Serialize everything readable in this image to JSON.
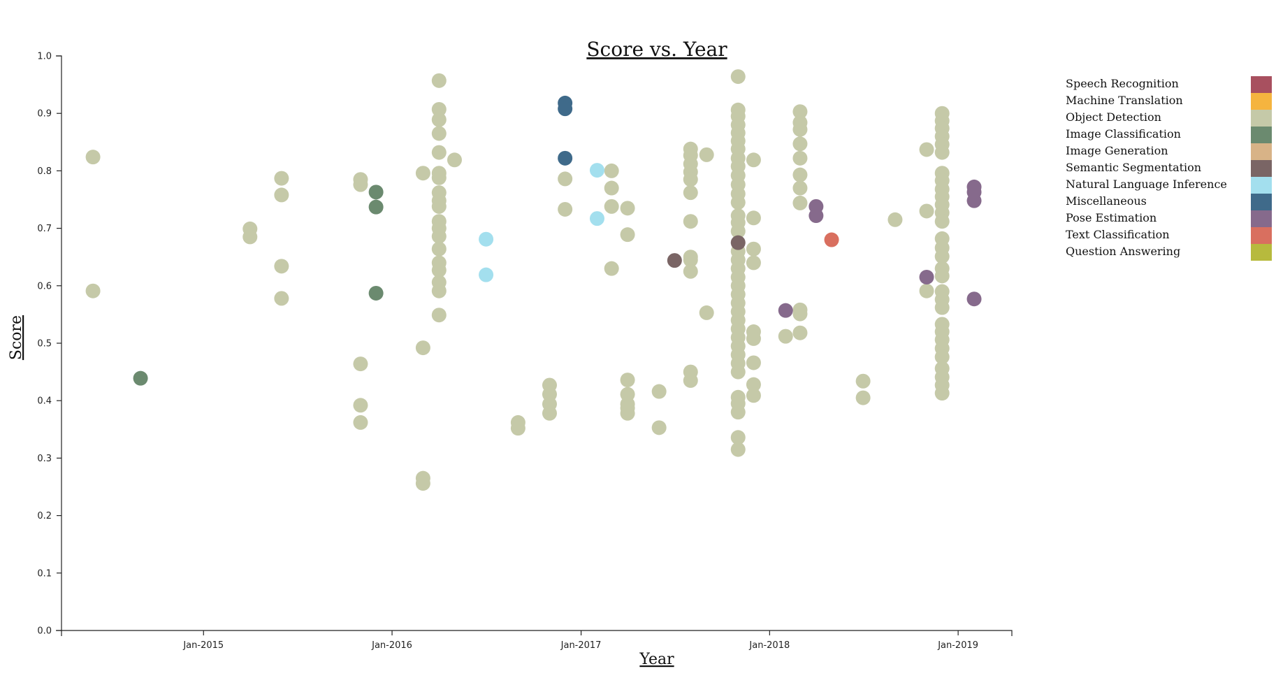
{
  "chart_data": {
    "type": "scatter",
    "title": "Score vs. Year",
    "xlabel": "Year",
    "ylabel": "Score",
    "ylim": [
      0,
      1
    ],
    "xlim": [
      "2014-04-01",
      "2019-04-15"
    ],
    "x_ticks": [
      {
        "date": "2015-01-01",
        "label": "Jan-2015"
      },
      {
        "date": "2016-01-01",
        "label": "Jan-2016"
      },
      {
        "date": "2017-01-01",
        "label": "Jan-2017"
      },
      {
        "date": "2018-01-01",
        "label": "Jan-2018"
      },
      {
        "date": "2019-01-01",
        "label": "Jan-2019"
      }
    ],
    "y_ticks": [
      "0.0",
      "0.1",
      "0.2",
      "0.3",
      "0.4",
      "0.5",
      "0.6",
      "0.7",
      "0.8",
      "0.9",
      "1.0"
    ],
    "grid": false,
    "legend_position": "right",
    "series": [
      {
        "name": "Speech Recognition",
        "color": "#a8505f",
        "points": []
      },
      {
        "name": "Machine Translation",
        "color": "#f5b43f",
        "points": []
      },
      {
        "name": "Object Detection",
        "color": "#c5c9a8",
        "points": [
          {
            "x": "2014-06-01",
            "y": 0.824
          },
          {
            "x": "2014-06-01",
            "y": 0.591
          },
          {
            "x": "2015-04-01",
            "y": 0.699
          },
          {
            "x": "2015-04-01",
            "y": 0.685
          },
          {
            "x": "2015-06-01",
            "y": 0.787
          },
          {
            "x": "2015-06-01",
            "y": 0.758
          },
          {
            "x": "2015-06-01",
            "y": 0.634
          },
          {
            "x": "2015-06-01",
            "y": 0.578
          },
          {
            "x": "2015-11-01",
            "y": 0.785
          },
          {
            "x": "2015-11-01",
            "y": 0.776
          },
          {
            "x": "2015-11-01",
            "y": 0.464
          },
          {
            "x": "2015-11-01",
            "y": 0.392
          },
          {
            "x": "2015-11-01",
            "y": 0.362
          },
          {
            "x": "2016-03-01",
            "y": 0.796
          },
          {
            "x": "2016-03-01",
            "y": 0.492
          },
          {
            "x": "2016-03-01",
            "y": 0.265
          },
          {
            "x": "2016-03-01",
            "y": 0.256
          },
          {
            "x": "2016-04-01",
            "y": 0.957
          },
          {
            "x": "2016-04-01",
            "y": 0.907
          },
          {
            "x": "2016-04-01",
            "y": 0.889
          },
          {
            "x": "2016-04-01",
            "y": 0.865
          },
          {
            "x": "2016-04-01",
            "y": 0.832
          },
          {
            "x": "2016-04-01",
            "y": 0.796
          },
          {
            "x": "2016-04-01",
            "y": 0.788
          },
          {
            "x": "2016-04-01",
            "y": 0.762
          },
          {
            "x": "2016-04-01",
            "y": 0.748
          },
          {
            "x": "2016-04-01",
            "y": 0.738
          },
          {
            "x": "2016-04-01",
            "y": 0.712
          },
          {
            "x": "2016-04-01",
            "y": 0.7
          },
          {
            "x": "2016-04-01",
            "y": 0.686
          },
          {
            "x": "2016-04-01",
            "y": 0.664
          },
          {
            "x": "2016-04-01",
            "y": 0.64
          },
          {
            "x": "2016-04-01",
            "y": 0.627
          },
          {
            "x": "2016-04-01",
            "y": 0.606
          },
          {
            "x": "2016-04-01",
            "y": 0.591
          },
          {
            "x": "2016-04-01",
            "y": 0.549
          },
          {
            "x": "2016-05-01",
            "y": 0.819
          },
          {
            "x": "2016-09-01",
            "y": 0.362
          },
          {
            "x": "2016-09-01",
            "y": 0.352
          },
          {
            "x": "2016-11-01",
            "y": 0.427
          },
          {
            "x": "2016-11-01",
            "y": 0.411
          },
          {
            "x": "2016-11-01",
            "y": 0.394
          },
          {
            "x": "2016-11-01",
            "y": 0.378
          },
          {
            "x": "2016-12-01",
            "y": 0.786
          },
          {
            "x": "2016-12-01",
            "y": 0.733
          },
          {
            "x": "2017-03-01",
            "y": 0.8
          },
          {
            "x": "2017-03-01",
            "y": 0.77
          },
          {
            "x": "2017-03-01",
            "y": 0.738
          },
          {
            "x": "2017-03-01",
            "y": 0.63
          },
          {
            "x": "2017-04-01",
            "y": 0.735
          },
          {
            "x": "2017-04-01",
            "y": 0.689
          },
          {
            "x": "2017-04-01",
            "y": 0.436
          },
          {
            "x": "2017-04-01",
            "y": 0.411
          },
          {
            "x": "2017-04-01",
            "y": 0.394
          },
          {
            "x": "2017-04-01",
            "y": 0.387
          },
          {
            "x": "2017-04-01",
            "y": 0.378
          },
          {
            "x": "2017-06-01",
            "y": 0.416
          },
          {
            "x": "2017-06-01",
            "y": 0.353
          },
          {
            "x": "2017-08-01",
            "y": 0.838
          },
          {
            "x": "2017-08-01",
            "y": 0.827
          },
          {
            "x": "2017-08-01",
            "y": 0.812
          },
          {
            "x": "2017-08-01",
            "y": 0.798
          },
          {
            "x": "2017-08-01",
            "y": 0.785
          },
          {
            "x": "2017-08-01",
            "y": 0.762
          },
          {
            "x": "2017-08-01",
            "y": 0.712
          },
          {
            "x": "2017-08-01",
            "y": 0.65
          },
          {
            "x": "2017-08-01",
            "y": 0.645
          },
          {
            "x": "2017-08-01",
            "y": 0.625
          },
          {
            "x": "2017-08-01",
            "y": 0.45
          },
          {
            "x": "2017-08-01",
            "y": 0.435
          },
          {
            "x": "2017-09-01",
            "y": 0.828
          },
          {
            "x": "2017-09-01",
            "y": 0.553
          },
          {
            "x": "2017-11-01",
            "y": 0.964
          },
          {
            "x": "2017-11-01",
            "y": 0.906
          },
          {
            "x": "2017-11-01",
            "y": 0.895
          },
          {
            "x": "2017-11-01",
            "y": 0.88
          },
          {
            "x": "2017-11-01",
            "y": 0.866
          },
          {
            "x": "2017-11-01",
            "y": 0.852
          },
          {
            "x": "2017-11-01",
            "y": 0.838
          },
          {
            "x": "2017-11-01",
            "y": 0.822
          },
          {
            "x": "2017-11-01",
            "y": 0.808
          },
          {
            "x": "2017-11-01",
            "y": 0.792
          },
          {
            "x": "2017-11-01",
            "y": 0.776
          },
          {
            "x": "2017-11-01",
            "y": 0.76
          },
          {
            "x": "2017-11-01",
            "y": 0.745
          },
          {
            "x": "2017-11-01",
            "y": 0.722
          },
          {
            "x": "2017-11-01",
            "y": 0.71
          },
          {
            "x": "2017-11-01",
            "y": 0.695
          },
          {
            "x": "2017-11-01",
            "y": 0.66
          },
          {
            "x": "2017-11-01",
            "y": 0.645
          },
          {
            "x": "2017-11-01",
            "y": 0.63
          },
          {
            "x": "2017-11-01",
            "y": 0.615
          },
          {
            "x": "2017-11-01",
            "y": 0.6
          },
          {
            "x": "2017-11-01",
            "y": 0.585
          },
          {
            "x": "2017-11-01",
            "y": 0.57
          },
          {
            "x": "2017-11-01",
            "y": 0.555
          },
          {
            "x": "2017-11-01",
            "y": 0.54
          },
          {
            "x": "2017-11-01",
            "y": 0.525
          },
          {
            "x": "2017-11-01",
            "y": 0.51
          },
          {
            "x": "2017-11-01",
            "y": 0.495
          },
          {
            "x": "2017-11-01",
            "y": 0.48
          },
          {
            "x": "2017-11-01",
            "y": 0.465
          },
          {
            "x": "2017-11-01",
            "y": 0.45
          },
          {
            "x": "2017-11-01",
            "y": 0.406
          },
          {
            "x": "2017-11-01",
            "y": 0.395
          },
          {
            "x": "2017-11-01",
            "y": 0.38
          },
          {
            "x": "2017-11-01",
            "y": 0.336
          },
          {
            "x": "2017-11-01",
            "y": 0.315
          },
          {
            "x": "2017-12-01",
            "y": 0.819
          },
          {
            "x": "2017-12-01",
            "y": 0.718
          },
          {
            "x": "2017-12-01",
            "y": 0.664
          },
          {
            "x": "2017-12-01",
            "y": 0.64
          },
          {
            "x": "2017-12-01",
            "y": 0.52
          },
          {
            "x": "2017-12-01",
            "y": 0.508
          },
          {
            "x": "2017-12-01",
            "y": 0.466
          },
          {
            "x": "2017-12-01",
            "y": 0.428
          },
          {
            "x": "2017-12-01",
            "y": 0.409
          },
          {
            "x": "2018-02-01",
            "y": 0.512
          },
          {
            "x": "2018-03-01",
            "y": 0.903
          },
          {
            "x": "2018-03-01",
            "y": 0.884
          },
          {
            "x": "2018-03-01",
            "y": 0.872
          },
          {
            "x": "2018-03-01",
            "y": 0.847
          },
          {
            "x": "2018-03-01",
            "y": 0.822
          },
          {
            "x": "2018-03-01",
            "y": 0.793
          },
          {
            "x": "2018-03-01",
            "y": 0.77
          },
          {
            "x": "2018-03-01",
            "y": 0.744
          },
          {
            "x": "2018-03-01",
            "y": 0.558
          },
          {
            "x": "2018-03-01",
            "y": 0.551
          },
          {
            "x": "2018-03-01",
            "y": 0.518
          },
          {
            "x": "2018-07-01",
            "y": 0.434
          },
          {
            "x": "2018-07-01",
            "y": 0.405
          },
          {
            "x": "2018-09-01",
            "y": 0.715
          },
          {
            "x": "2018-11-01",
            "y": 0.837
          },
          {
            "x": "2018-11-01",
            "y": 0.73
          },
          {
            "x": "2018-11-01",
            "y": 0.591
          },
          {
            "x": "2018-12-01",
            "y": 0.9
          },
          {
            "x": "2018-12-01",
            "y": 0.887
          },
          {
            "x": "2018-12-01",
            "y": 0.874
          },
          {
            "x": "2018-12-01",
            "y": 0.86
          },
          {
            "x": "2018-12-01",
            "y": 0.846
          },
          {
            "x": "2018-12-01",
            "y": 0.832
          },
          {
            "x": "2018-12-01",
            "y": 0.796
          },
          {
            "x": "2018-12-01",
            "y": 0.783
          },
          {
            "x": "2018-12-01",
            "y": 0.768
          },
          {
            "x": "2018-12-01",
            "y": 0.755
          },
          {
            "x": "2018-12-01",
            "y": 0.741
          },
          {
            "x": "2018-12-01",
            "y": 0.727
          },
          {
            "x": "2018-12-01",
            "y": 0.712
          },
          {
            "x": "2018-12-01",
            "y": 0.682
          },
          {
            "x": "2018-12-01",
            "y": 0.666
          },
          {
            "x": "2018-12-01",
            "y": 0.651
          },
          {
            "x": "2018-12-01",
            "y": 0.63
          },
          {
            "x": "2018-12-01",
            "y": 0.617
          },
          {
            "x": "2018-12-01",
            "y": 0.59
          },
          {
            "x": "2018-12-01",
            "y": 0.576
          },
          {
            "x": "2018-12-01",
            "y": 0.562
          },
          {
            "x": "2018-12-01",
            "y": 0.533
          },
          {
            "x": "2018-12-01",
            "y": 0.52
          },
          {
            "x": "2018-12-01",
            "y": 0.506
          },
          {
            "x": "2018-12-01",
            "y": 0.491
          },
          {
            "x": "2018-12-01",
            "y": 0.476
          },
          {
            "x": "2018-12-01",
            "y": 0.456
          },
          {
            "x": "2018-12-01",
            "y": 0.441
          },
          {
            "x": "2018-12-01",
            "y": 0.427
          },
          {
            "x": "2018-12-01",
            "y": 0.413
          }
        ]
      },
      {
        "name": "Image Classification",
        "color": "#6b8a6f",
        "points": [
          {
            "x": "2014-09-01",
            "y": 0.439
          },
          {
            "x": "2015-12-01",
            "y": 0.763
          },
          {
            "x": "2015-12-01",
            "y": 0.737
          },
          {
            "x": "2015-12-01",
            "y": 0.587
          }
        ]
      },
      {
        "name": "Image Generation",
        "color": "#d8b387",
        "points": []
      },
      {
        "name": "Semantic Segmentation",
        "color": "#7a6565",
        "points": [
          {
            "x": "2017-07-01",
            "y": 0.644
          },
          {
            "x": "2017-11-01",
            "y": 0.675
          }
        ]
      },
      {
        "name": "Natural Language Inference",
        "color": "#a3dfee",
        "points": [
          {
            "x": "2016-07-01",
            "y": 0.681
          },
          {
            "x": "2016-07-01",
            "y": 0.619
          },
          {
            "x": "2017-02-01",
            "y": 0.801
          },
          {
            "x": "2017-02-01",
            "y": 0.717
          }
        ]
      },
      {
        "name": "Miscellaneous",
        "color": "#3f6a8a",
        "points": [
          {
            "x": "2016-12-01",
            "y": 0.918
          },
          {
            "x": "2016-12-01",
            "y": 0.908
          },
          {
            "x": "2016-12-01",
            "y": 0.822
          }
        ]
      },
      {
        "name": "Pose Estimation",
        "color": "#866a8c",
        "points": [
          {
            "x": "2018-02-01",
            "y": 0.557
          },
          {
            "x": "2018-04-01",
            "y": 0.738
          },
          {
            "x": "2018-04-01",
            "y": 0.722
          },
          {
            "x": "2018-11-01",
            "y": 0.615
          },
          {
            "x": "2019-02-01",
            "y": 0.772
          },
          {
            "x": "2019-02-01",
            "y": 0.763
          },
          {
            "x": "2019-02-01",
            "y": 0.748
          },
          {
            "x": "2019-02-01",
            "y": 0.577
          }
        ]
      },
      {
        "name": "Text Classification",
        "color": "#d96f5f",
        "points": [
          {
            "x": "2018-05-01",
            "y": 0.68
          }
        ]
      },
      {
        "name": "Question Answering",
        "color": "#b7ba3d",
        "points": []
      }
    ]
  }
}
